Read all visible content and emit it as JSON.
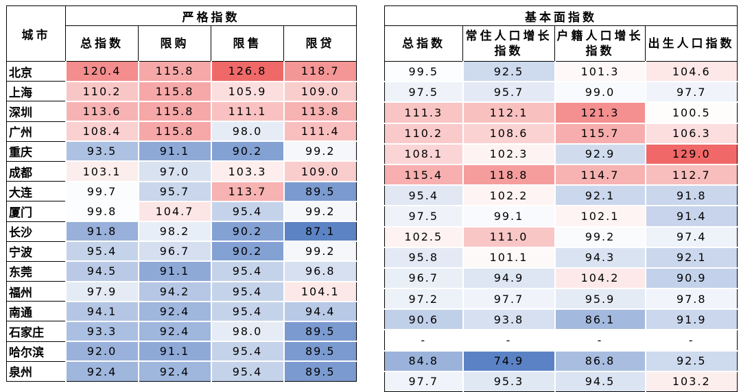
{
  "left": {
    "group_title": "严格指数",
    "city_header": "城市",
    "columns": [
      "总指数",
      "限购",
      "限售",
      "限贷"
    ]
  },
  "right": {
    "group_title": "基本面指数",
    "columns": [
      "总指数",
      "常住人口增长指数",
      "户籍人口增长指数",
      "出生人口指数"
    ]
  },
  "rows": [
    {
      "city": "北京",
      "strict": [
        "120.4",
        "115.8",
        "126.8",
        "118.7"
      ],
      "fund": [
        "99.5",
        "92.5",
        "101.3",
        "104.6"
      ]
    },
    {
      "city": "上海",
      "strict": [
        "110.2",
        "115.8",
        "105.9",
        "109.0"
      ],
      "fund": [
        "97.5",
        "95.7",
        "99.0",
        "97.7"
      ]
    },
    {
      "city": "深圳",
      "strict": [
        "113.6",
        "115.8",
        "111.1",
        "113.8"
      ],
      "fund": [
        "111.3",
        "112.1",
        "121.3",
        "100.5"
      ]
    },
    {
      "city": "广州",
      "strict": [
        "108.4",
        "115.8",
        "98.0",
        "111.4"
      ],
      "fund": [
        "110.2",
        "108.6",
        "115.7",
        "106.3"
      ]
    },
    {
      "city": "重庆",
      "strict": [
        "93.5",
        "91.1",
        "90.2",
        "99.2"
      ],
      "fund": [
        "108.1",
        "102.3",
        "92.9",
        "129.0"
      ]
    },
    {
      "city": "成都",
      "strict": [
        "103.1",
        "97.0",
        "103.3",
        "109.0"
      ],
      "fund": [
        "115.4",
        "118.8",
        "114.7",
        "112.7"
      ]
    },
    {
      "city": "大连",
      "strict": [
        "99.7",
        "95.7",
        "113.7",
        "89.5"
      ],
      "fund": [
        "95.4",
        "102.2",
        "92.1",
        "91.8"
      ]
    },
    {
      "city": "厦门",
      "strict": [
        "99.8",
        "104.7",
        "95.4",
        "99.2"
      ],
      "fund": [
        "97.5",
        "99.1",
        "102.1",
        "91.4"
      ]
    },
    {
      "city": "长沙",
      "strict": [
        "91.8",
        "98.2",
        "90.2",
        "87.1"
      ],
      "fund": [
        "102.5",
        "111.0",
        "99.2",
        "97.4"
      ]
    },
    {
      "city": "宁波",
      "strict": [
        "95.4",
        "96.7",
        "90.2",
        "99.2"
      ],
      "fund": [
        "95.8",
        "101.1",
        "94.3",
        "92.1"
      ]
    },
    {
      "city": "东莞",
      "strict": [
        "94.5",
        "91.1",
        "95.4",
        "96.8"
      ],
      "fund": [
        "96.7",
        "94.9",
        "104.2",
        "90.9"
      ]
    },
    {
      "city": "福州",
      "strict": [
        "97.9",
        "94.2",
        "95.4",
        "104.1"
      ],
      "fund": [
        "97.2",
        "97.7",
        "95.9",
        "97.8"
      ]
    },
    {
      "city": "南通",
      "strict": [
        "94.1",
        "92.4",
        "95.4",
        "94.4"
      ],
      "fund": [
        "90.6",
        "93.8",
        "86.1",
        "91.9"
      ]
    },
    {
      "city": "石家庄",
      "strict": [
        "93.3",
        "92.4",
        "98.0",
        "89.5"
      ],
      "fund": [
        "-",
        "-",
        "-",
        "-"
      ]
    },
    {
      "city": "哈尔滨",
      "strict": [
        "92.0",
        "91.1",
        "95.4",
        "89.5"
      ],
      "fund": [
        "84.8",
        "74.9",
        "86.8",
        "92.5"
      ]
    },
    {
      "city": "泉州",
      "strict": [
        "92.4",
        "92.4",
        "95.4",
        "89.5"
      ],
      "fund": [
        "97.7",
        "95.3",
        "94.5",
        "103.2"
      ]
    }
  ],
  "colors": {
    "high": "#f06868",
    "mid": "#ffffff",
    "low": "#5b82c4"
  }
}
